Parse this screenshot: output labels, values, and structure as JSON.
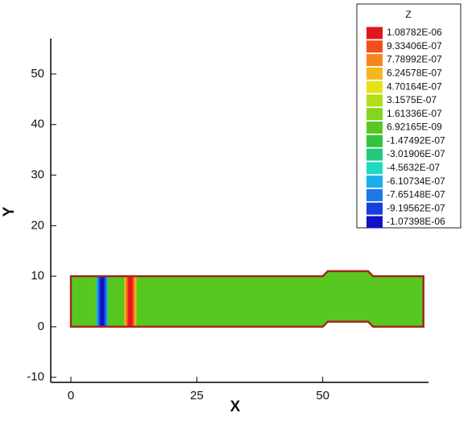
{
  "chart_data": {
    "type": "contour",
    "x_label": "X",
    "y_label": "Y",
    "xlim": [
      -4,
      71
    ],
    "ylim": [
      -11,
      57
    ],
    "xticks": [
      0,
      25,
      50
    ],
    "yticks": [
      -10,
      0,
      10,
      20,
      30,
      40,
      50
    ],
    "legend_title": "Z",
    "legend_position": "upper right",
    "levels": [
      {
        "value": 1.08782e-06,
        "label": "1.08782E-06"
      },
      {
        "value": 9.33406e-07,
        "label": "9.33406E-07"
      },
      {
        "value": 7.78992e-07,
        "label": "7.78992E-07"
      },
      {
        "value": 6.24578e-07,
        "label": "6.24578E-07"
      },
      {
        "value": 4.70164e-07,
        "label": "4.70164E-07"
      },
      {
        "value": 3.1575e-07,
        "label": "3.1575E-07"
      },
      {
        "value": 1.61336e-07,
        "label": "1.61336E-07"
      },
      {
        "value": 6.92165e-09,
        "label": "6.92165E-09"
      },
      {
        "value": -1.47492e-07,
        "label": "-1.47492E-07"
      },
      {
        "value": -3.01906e-07,
        "label": "-3.01906E-07"
      },
      {
        "value": -4.5632e-07,
        "label": "-4.5632E-07"
      },
      {
        "value": -6.10734e-07,
        "label": "-6.10734E-07"
      },
      {
        "value": -7.65148e-07,
        "label": "-7.65148E-07"
      },
      {
        "value": -9.19562e-07,
        "label": "-9.19562E-07"
      },
      {
        "value": -1.07398e-06,
        "label": "-1.07398E-06"
      }
    ],
    "level_colors": [
      "#e3151c",
      "#f2501a",
      "#f7861d",
      "#f7b61c",
      "#e6e21a",
      "#b2de1a",
      "#82d41c",
      "#58c820",
      "#33c33c",
      "#22c97a",
      "#1fd9c4",
      "#1aaeea",
      "#1a78e8",
      "#1a40dc",
      "#1212c4"
    ],
    "outline": {
      "x": [
        0,
        50,
        51,
        59,
        60,
        70,
        70,
        60,
        59,
        51,
        50,
        0,
        0
      ],
      "y": [
        0,
        0,
        1,
        1,
        0,
        0,
        10,
        10,
        11,
        11,
        10,
        10,
        0
      ]
    },
    "outline_color": "#a3281c",
    "field_z": 6.92165e-09,
    "stripes": {
      "x": [
        6.2,
        11.8
      ],
      "z": [
        -1.07398e-06,
        1.08782e-06
      ],
      "width": [
        2.2,
        2.4
      ]
    }
  }
}
